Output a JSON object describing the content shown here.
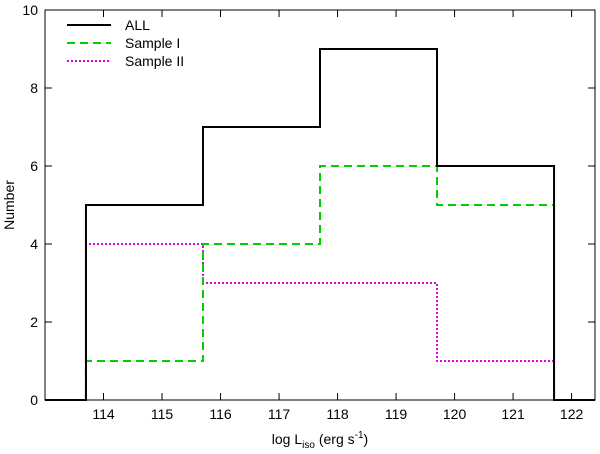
{
  "chart_data": {
    "type": "histogram",
    "xlabel": {
      "base": "log L",
      "sub": "iso",
      "unit_pre": " (erg s",
      "sup": "-1",
      "unit_post": ")"
    },
    "ylabel": "Number",
    "xlim": [
      113,
      122.4
    ],
    "ylim": [
      0,
      10
    ],
    "xticks": [
      114,
      115,
      116,
      117,
      118,
      119,
      120,
      121,
      122
    ],
    "yticks": [
      0,
      2,
      4,
      6,
      8,
      10
    ],
    "bin_edges": [
      113.7,
      115.7,
      117.7,
      119.7,
      121.7
    ],
    "legend_position": "top-left",
    "series": [
      {
        "name": "ALL",
        "values": [
          5,
          7,
          9,
          6
        ],
        "color": "#000000",
        "dash": "solid"
      },
      {
        "name": "Sample I",
        "values": [
          1,
          4,
          6,
          5
        ],
        "color": "#00d000",
        "dash": "dashed"
      },
      {
        "name": "Sample II",
        "values": [
          4,
          3,
          3,
          1
        ],
        "color": "#e000e0",
        "dash": "dotted"
      }
    ]
  }
}
